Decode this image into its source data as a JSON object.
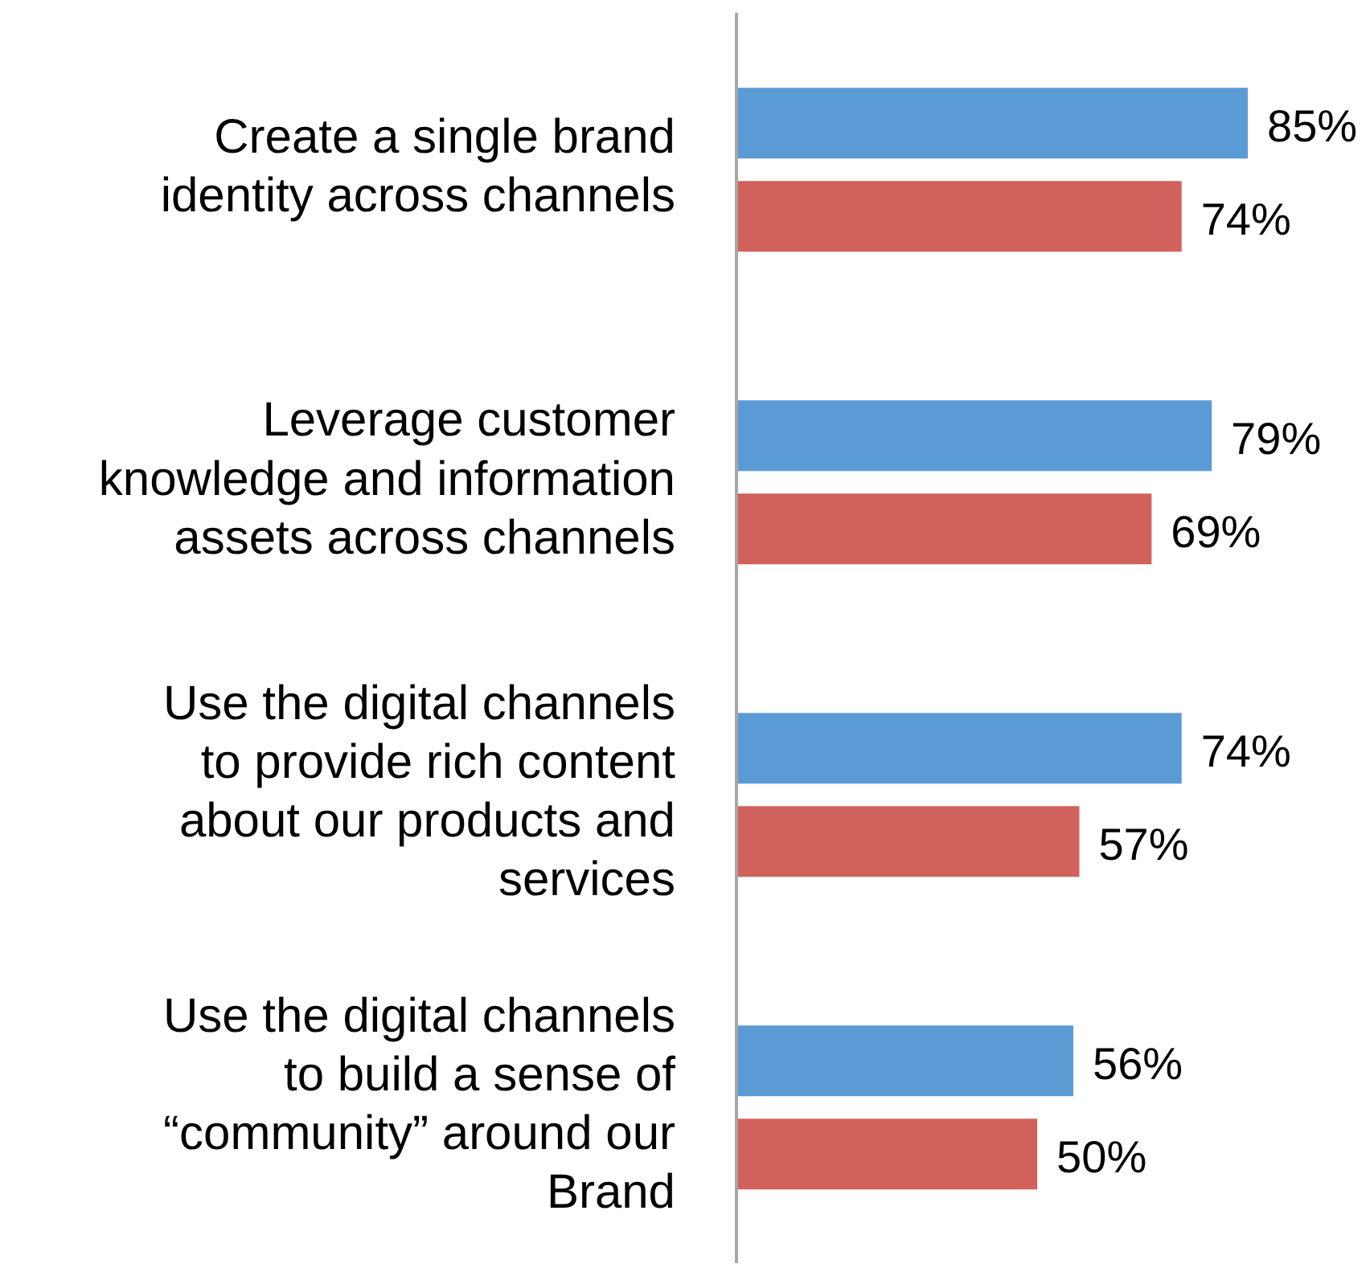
{
  "chart_data": {
    "type": "bar",
    "orientation": "horizontal",
    "categories": [
      "Create a single brand identity across channels",
      "Leverage customer knowledge and information assets across channels",
      "Use the digital channels to provide rich content about our products and services",
      "Use the digital channels to build a sense of “community” around our Brand"
    ],
    "series": [
      {
        "color": "#5b9bd5",
        "values": [
          85,
          79,
          74,
          56
        ],
        "value_labels": [
          "85%",
          "79%",
          "74%",
          "56%"
        ]
      },
      {
        "color": "#d0625b",
        "values": [
          74,
          69,
          57,
          50
        ],
        "value_labels": [
          "74%",
          "69%",
          "57%",
          "50%"
        ]
      }
    ],
    "tick_labels": "y"
  }
}
